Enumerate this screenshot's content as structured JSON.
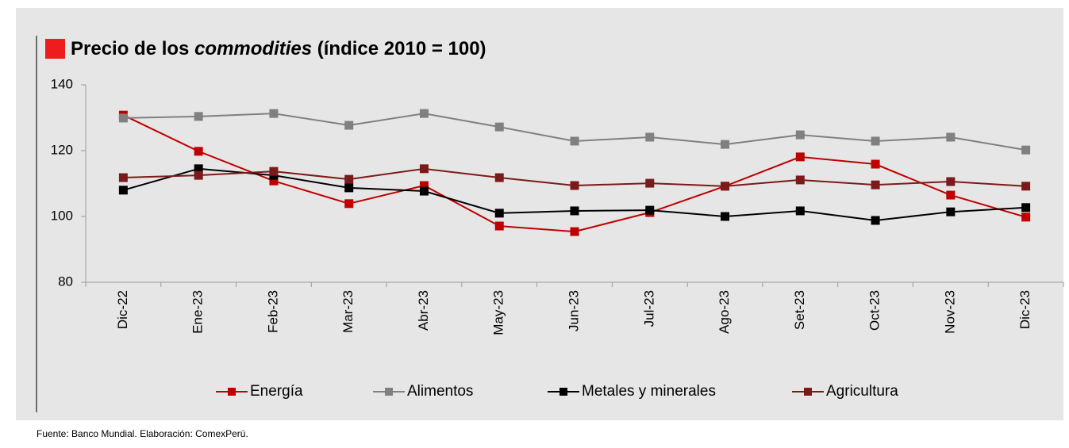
{
  "chart_data": {
    "type": "line",
    "title": {
      "prefix": "Precio de los ",
      "emphasis": "commodities",
      "suffix": " (índice 2010 = 100)"
    },
    "source": "Fuente: Banco Mundial. Elaboración: ComexPerú.",
    "categories": [
      "Dic-22",
      "Ene-23",
      "Feb-23",
      "Mar-23",
      "Abr-23",
      "May-23",
      "Jun-23",
      "Jul-23",
      "Ago-23",
      "Set-23",
      "Oct-23",
      "Nov-23",
      "Dic-23"
    ],
    "series": [
      {
        "name": "Energía",
        "color": "#c00000",
        "values": [
          130.8,
          119.8,
          110.8,
          103.9,
          109.4,
          97.1,
          95.4,
          101.2,
          109.2,
          118.1,
          115.9,
          106.5,
          99.8
        ]
      },
      {
        "name": "Alimentos",
        "color": "#808080",
        "values": [
          129.9,
          130.4,
          131.3,
          127.7,
          131.3,
          127.2,
          122.9,
          124.1,
          121.9,
          124.8,
          122.9,
          124.1,
          120.2
        ]
      },
      {
        "name": "Metales y minerales",
        "color": "#000000",
        "values": [
          108.0,
          114.5,
          112.5,
          108.7,
          107.7,
          101.0,
          101.7,
          101.9,
          100.0,
          101.7,
          98.8,
          101.4,
          102.7
        ]
      },
      {
        "name": "Agricultura",
        "color": "#7b1a1a",
        "values": [
          111.8,
          112.5,
          113.7,
          111.3,
          114.5,
          111.8,
          109.4,
          110.1,
          109.2,
          111.1,
          109.6,
          110.6,
          109.2
        ]
      }
    ],
    "ylim": [
      80,
      140
    ],
    "yticks": [
      80,
      100,
      120,
      140
    ],
    "grid": false,
    "legend": "bottom"
  }
}
